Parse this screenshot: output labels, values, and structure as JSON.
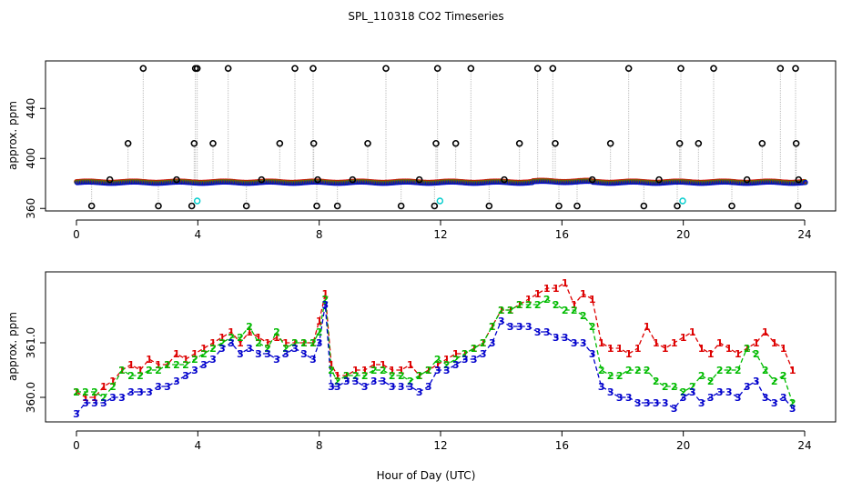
{
  "title": "SPL_110318  CO2 Timeseries",
  "xlabel": "Hour of Day (UTC)",
  "colors": {
    "s1": "#dd0000",
    "s2": "#00bb00",
    "s3": "#0000cc",
    "cyan": "#00cccc",
    "ring": "#000000",
    "drop": "#aaaaaa"
  },
  "chart_data": [
    {
      "type": "scatter",
      "name": "top",
      "ylabel": "approx. ppm",
      "xlim": [
        0,
        24
      ],
      "ylim": [
        358,
        478
      ],
      "xticks": [
        "0",
        "4",
        "8",
        "12",
        "16",
        "20",
        "24"
      ],
      "xtick_values": [
        0,
        4,
        8,
        12,
        16,
        20,
        24
      ],
      "yticks": [
        "360",
        "400",
        "440"
      ],
      "ytick_values": [
        360,
        400,
        440
      ],
      "baseline": 381,
      "outliers": [
        [
          0.5,
          362
        ],
        [
          1.1,
          383
        ],
        [
          1.7,
          412
        ],
        [
          2.2,
          472
        ],
        [
          2.7,
          362
        ],
        [
          3.3,
          383
        ],
        [
          3.8,
          362
        ],
        [
          3.88,
          412
        ],
        [
          3.92,
          472
        ],
        [
          3.98,
          472
        ],
        [
          4.5,
          412
        ],
        [
          5.0,
          472
        ],
        [
          5.6,
          362
        ],
        [
          6.1,
          383
        ],
        [
          6.7,
          412
        ],
        [
          7.2,
          472
        ],
        [
          7.8,
          472
        ],
        [
          7.82,
          412
        ],
        [
          7.92,
          362
        ],
        [
          7.95,
          383
        ],
        [
          8.6,
          362
        ],
        [
          9.1,
          383
        ],
        [
          9.6,
          412
        ],
        [
          10.2,
          472
        ],
        [
          10.7,
          362
        ],
        [
          11.3,
          383
        ],
        [
          11.8,
          362
        ],
        [
          11.85,
          412
        ],
        [
          11.9,
          472
        ],
        [
          12.5,
          412
        ],
        [
          13.0,
          472
        ],
        [
          13.6,
          362
        ],
        [
          14.1,
          383
        ],
        [
          14.6,
          412
        ],
        [
          15.2,
          472
        ],
        [
          15.7,
          472
        ],
        [
          15.78,
          412
        ],
        [
          15.9,
          362
        ],
        [
          16.5,
          362
        ],
        [
          17.0,
          383
        ],
        [
          17.6,
          412
        ],
        [
          18.2,
          472
        ],
        [
          18.7,
          362
        ],
        [
          19.2,
          383
        ],
        [
          19.8,
          362
        ],
        [
          19.88,
          412
        ],
        [
          19.92,
          472
        ],
        [
          20.5,
          412
        ],
        [
          21.0,
          472
        ],
        [
          21.6,
          362
        ],
        [
          22.1,
          383
        ],
        [
          22.6,
          412
        ],
        [
          23.2,
          472
        ],
        [
          23.7,
          472
        ],
        [
          23.72,
          412
        ],
        [
          23.78,
          362
        ],
        [
          23.8,
          383
        ]
      ],
      "cyan_points": [
        [
          3.98,
          366
        ],
        [
          11.98,
          366
        ],
        [
          19.98,
          366
        ]
      ]
    },
    {
      "type": "line",
      "name": "bottom",
      "ylabel": "approx. ppm",
      "xlim": [
        0,
        24
      ],
      "ylim": [
        359.55,
        362.3
      ],
      "xticks": [
        "0",
        "4",
        "8",
        "12",
        "16",
        "20",
        "24"
      ],
      "xtick_values": [
        0,
        4,
        8,
        12,
        16,
        20,
        24
      ],
      "yticks": [
        "360.0",
        "361.0"
      ],
      "ytick_values": [
        360.0,
        361.0
      ],
      "x": [
        0,
        0.3,
        0.6,
        0.9,
        1.2,
        1.5,
        1.8,
        2.1,
        2.4,
        2.7,
        3.0,
        3.3,
        3.6,
        3.9,
        4.2,
        4.5,
        4.8,
        5.1,
        5.4,
        5.7,
        6.0,
        6.3,
        6.6,
        6.9,
        7.2,
        7.5,
        7.8,
        8.0,
        8.2,
        8.4,
        8.6,
        8.9,
        9.2,
        9.5,
        9.8,
        10.1,
        10.4,
        10.7,
        11.0,
        11.3,
        11.6,
        11.9,
        12.2,
        12.5,
        12.8,
        13.1,
        13.4,
        13.7,
        14.0,
        14.3,
        14.6,
        14.9,
        15.2,
        15.5,
        15.8,
        16.1,
        16.4,
        16.7,
        17.0,
        17.3,
        17.6,
        17.9,
        18.2,
        18.5,
        18.8,
        19.1,
        19.4,
        19.7,
        20.0,
        20.3,
        20.6,
        20.9,
        21.2,
        21.5,
        21.8,
        22.1,
        22.4,
        22.7,
        23.0,
        23.3,
        23.6
      ],
      "series": [
        {
          "name": "1",
          "values": [
            360.1,
            360.0,
            360.0,
            360.2,
            360.3,
            360.5,
            360.6,
            360.5,
            360.7,
            360.6,
            360.6,
            360.8,
            360.7,
            360.8,
            360.9,
            361.0,
            361.1,
            361.2,
            361.0,
            361.2,
            361.1,
            361.0,
            361.1,
            361.0,
            361.0,
            361.0,
            361.0,
            361.4,
            361.9,
            360.6,
            360.4,
            360.4,
            360.5,
            360.5,
            360.6,
            360.6,
            360.5,
            360.5,
            360.6,
            360.4,
            360.5,
            360.6,
            360.7,
            360.8,
            360.8,
            360.9,
            361.0,
            361.3,
            361.6,
            361.6,
            361.7,
            361.8,
            361.9,
            362.0,
            362.0,
            362.1,
            361.7,
            361.9,
            361.8,
            361.0,
            360.9,
            360.9,
            360.8,
            360.9,
            361.3,
            361.0,
            360.9,
            361.0,
            361.1,
            361.2,
            360.9,
            360.8,
            361.0,
            360.9,
            360.8,
            360.9,
            361.0,
            361.2,
            361.0,
            360.9,
            360.5
          ]
        },
        {
          "name": "2",
          "values": [
            360.1,
            360.1,
            360.1,
            360.0,
            360.2,
            360.5,
            360.4,
            360.4,
            360.5,
            360.5,
            360.6,
            360.6,
            360.6,
            360.7,
            360.8,
            360.9,
            361.0,
            361.1,
            361.1,
            361.3,
            361.0,
            360.9,
            361.2,
            360.9,
            361.0,
            361.0,
            361.0,
            361.2,
            361.8,
            360.5,
            360.3,
            360.4,
            360.4,
            360.4,
            360.5,
            360.5,
            360.4,
            360.4,
            360.3,
            360.4,
            360.5,
            360.7,
            360.6,
            360.7,
            360.8,
            360.9,
            361.0,
            361.3,
            361.6,
            361.6,
            361.7,
            361.7,
            361.7,
            361.8,
            361.7,
            361.6,
            361.6,
            361.5,
            361.3,
            360.5,
            360.4,
            360.4,
            360.5,
            360.5,
            360.5,
            360.3,
            360.2,
            360.2,
            360.1,
            360.2,
            360.4,
            360.3,
            360.5,
            360.5,
            360.5,
            360.9,
            360.8,
            360.5,
            360.3,
            360.4,
            359.9
          ]
        },
        {
          "name": "3",
          "values": [
            359.7,
            359.9,
            359.9,
            359.9,
            360.0,
            360.0,
            360.1,
            360.1,
            360.1,
            360.2,
            360.2,
            360.3,
            360.4,
            360.5,
            360.6,
            360.7,
            360.9,
            361.0,
            360.8,
            360.9,
            360.8,
            360.8,
            360.7,
            360.8,
            360.9,
            360.8,
            360.7,
            361.0,
            361.7,
            360.2,
            360.2,
            360.3,
            360.3,
            360.2,
            360.3,
            360.3,
            360.2,
            360.2,
            360.2,
            360.1,
            360.2,
            360.5,
            360.5,
            360.6,
            360.7,
            360.7,
            360.8,
            361.0,
            361.4,
            361.3,
            361.3,
            361.3,
            361.2,
            361.2,
            361.1,
            361.1,
            361.0,
            361.0,
            360.8,
            360.2,
            360.1,
            360.0,
            360.0,
            359.9,
            359.9,
            359.9,
            359.9,
            359.8,
            360.0,
            360.1,
            359.9,
            360.0,
            360.1,
            360.1,
            360.0,
            360.2,
            360.3,
            360.0,
            359.9,
            360.0,
            359.8
          ]
        }
      ]
    }
  ]
}
